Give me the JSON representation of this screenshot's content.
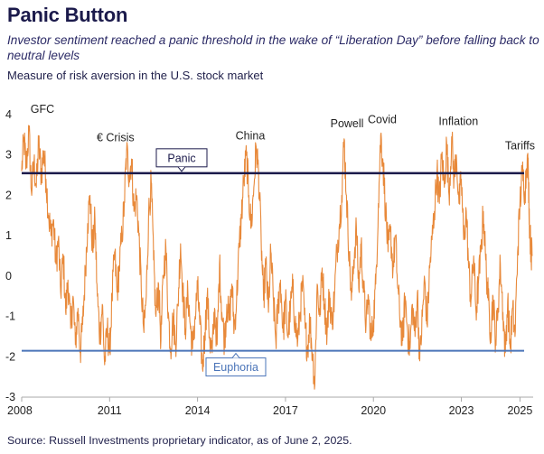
{
  "title": "Panic Button",
  "subtitle": "Investor sentiment reached a panic threshold in the wake of “Liberation Day” before falling back to neutral levels",
  "measure_label": "Measure of risk aversion in the U.S. stock market",
  "source": "Source: Russell Investments proprietary indicator, as of June 2, 2025.",
  "colors": {
    "series": "#e8893a",
    "panic_line": "#1b1a4b",
    "euphoria_line": "#4a74b8",
    "axis": "#999999"
  },
  "chart_data": {
    "type": "line",
    "title": "Panic Button",
    "xlabel": "",
    "ylabel": "",
    "xlim": [
      2008.0,
      2025.45
    ],
    "ylim": [
      -3,
      4
    ],
    "x_ticks": [
      2008,
      2011,
      2014,
      2017,
      2020,
      2023,
      2025
    ],
    "y_ticks": [
      4,
      3,
      2,
      1,
      0,
      -1,
      -2,
      -3
    ],
    "grid": false,
    "thresholds": [
      {
        "label": "Panic",
        "value": 2.55
      },
      {
        "label": "Euphoria",
        "value": -1.85
      }
    ],
    "annotations": [
      {
        "text": "GFC",
        "x": 2008.3,
        "y": 3.95
      },
      {
        "text": "€ Crisis",
        "x": 2011.2,
        "y": 3.25
      },
      {
        "text": "China",
        "x": 2015.8,
        "y": 3.3
      },
      {
        "text": "Powell",
        "x": 2019.1,
        "y": 3.6
      },
      {
        "text": "Covid",
        "x": 2020.3,
        "y": 3.7
      },
      {
        "text": "Inflation",
        "x": 2022.9,
        "y": 3.65
      },
      {
        "text": "Tariffs",
        "x": 2025.0,
        "y": 3.05
      }
    ],
    "series": [
      {
        "values": [
          [
            2008.0,
            2.6
          ],
          [
            2008.08,
            3.4
          ],
          [
            2008.15,
            2.7
          ],
          [
            2008.25,
            3.6
          ],
          [
            2008.33,
            2.1
          ],
          [
            2008.42,
            2.8
          ],
          [
            2008.5,
            2.2
          ],
          [
            2008.58,
            3.3
          ],
          [
            2008.67,
            2.5
          ],
          [
            2008.75,
            3.1
          ],
          [
            2008.83,
            2.4
          ],
          [
            2008.92,
            1.5
          ],
          [
            2009.0,
            1.0
          ],
          [
            2009.08,
            1.4
          ],
          [
            2009.17,
            0.3
          ],
          [
            2009.25,
            0.9
          ],
          [
            2009.33,
            -0.4
          ],
          [
            2009.42,
            0.5
          ],
          [
            2009.5,
            -0.9
          ],
          [
            2009.58,
            -0.1
          ],
          [
            2009.67,
            -1.3
          ],
          [
            2009.75,
            -0.5
          ],
          [
            2009.83,
            -1.7
          ],
          [
            2009.92,
            -0.8
          ],
          [
            2010.0,
            -1.9
          ],
          [
            2010.08,
            -1.2
          ],
          [
            2010.17,
            0.1
          ],
          [
            2010.25,
            1.3
          ],
          [
            2010.33,
            2.0
          ],
          [
            2010.42,
            0.6
          ],
          [
            2010.5,
            1.4
          ],
          [
            2010.58,
            -0.5
          ],
          [
            2010.67,
            -1.5
          ],
          [
            2010.75,
            -0.7
          ],
          [
            2010.83,
            -2.2
          ],
          [
            2010.92,
            -1.3
          ],
          [
            2011.0,
            -1.9
          ],
          [
            2011.08,
            -0.6
          ],
          [
            2011.17,
            0.6
          ],
          [
            2011.25,
            -0.4
          ],
          [
            2011.33,
            0.2
          ],
          [
            2011.42,
            1.0
          ],
          [
            2011.5,
            1.8
          ],
          [
            2011.58,
            3.1
          ],
          [
            2011.67,
            2.5
          ],
          [
            2011.75,
            2.9
          ],
          [
            2011.83,
            1.6
          ],
          [
            2011.92,
            2.0
          ],
          [
            2012.0,
            1.0
          ],
          [
            2012.08,
            -0.3
          ],
          [
            2012.17,
            -1.4
          ],
          [
            2012.25,
            -0.5
          ],
          [
            2012.33,
            1.5
          ],
          [
            2012.42,
            2.3
          ],
          [
            2012.5,
            0.4
          ],
          [
            2012.58,
            -1.0
          ],
          [
            2012.67,
            -0.2
          ],
          [
            2012.75,
            -1.6
          ],
          [
            2012.83,
            0.0
          ],
          [
            2012.92,
            0.7
          ],
          [
            2013.0,
            -0.9
          ],
          [
            2013.08,
            -1.8
          ],
          [
            2013.17,
            -1.0
          ],
          [
            2013.25,
            -1.7
          ],
          [
            2013.33,
            -0.7
          ],
          [
            2013.42,
            0.8
          ],
          [
            2013.5,
            -0.4
          ],
          [
            2013.58,
            -1.3
          ],
          [
            2013.67,
            -0.4
          ],
          [
            2013.75,
            -1.2
          ],
          [
            2013.83,
            -1.8
          ],
          [
            2013.92,
            -1.0
          ],
          [
            2014.0,
            -0.3
          ],
          [
            2014.08,
            -1.2
          ],
          [
            2014.17,
            -2.3
          ],
          [
            2014.25,
            -1.4
          ],
          [
            2014.33,
            -0.5
          ],
          [
            2014.42,
            -1.6
          ],
          [
            2014.5,
            -1.9
          ],
          [
            2014.58,
            -0.8
          ],
          [
            2014.67,
            -1.7
          ],
          [
            2014.75,
            0.3
          ],
          [
            2014.83,
            -0.9
          ],
          [
            2014.92,
            -1.6
          ],
          [
            2015.0,
            -0.7
          ],
          [
            2015.08,
            -1.1
          ],
          [
            2015.17,
            -0.2
          ],
          [
            2015.25,
            -1.3
          ],
          [
            2015.33,
            -0.6
          ],
          [
            2015.42,
            0.7
          ],
          [
            2015.5,
            1.5
          ],
          [
            2015.58,
            2.4
          ],
          [
            2015.67,
            3.0
          ],
          [
            2015.75,
            2.0
          ],
          [
            2015.83,
            1.2
          ],
          [
            2015.92,
            2.2
          ],
          [
            2016.0,
            3.2
          ],
          [
            2016.08,
            2.6
          ],
          [
            2016.17,
            0.9
          ],
          [
            2016.25,
            -0.6
          ],
          [
            2016.33,
            0.3
          ],
          [
            2016.42,
            -0.9
          ],
          [
            2016.5,
            0.6
          ],
          [
            2016.58,
            -0.5
          ],
          [
            2016.67,
            -1.6
          ],
          [
            2016.75,
            -0.7
          ],
          [
            2016.83,
            -0.1
          ],
          [
            2016.92,
            -1.4
          ],
          [
            2017.0,
            -0.6
          ],
          [
            2017.08,
            -1.5
          ],
          [
            2017.17,
            -0.8
          ],
          [
            2017.25,
            -0.3
          ],
          [
            2017.33,
            -1.2
          ],
          [
            2017.42,
            -1.6
          ],
          [
            2017.5,
            -0.9
          ],
          [
            2017.58,
            -0.2
          ],
          [
            2017.67,
            -1.3
          ],
          [
            2017.75,
            -1.8
          ],
          [
            2017.83,
            -1.1
          ],
          [
            2017.92,
            -1.9
          ],
          [
            2018.0,
            -2.7
          ],
          [
            2018.08,
            -0.2
          ],
          [
            2018.17,
            -1.0
          ],
          [
            2018.25,
            0.2
          ],
          [
            2018.33,
            -0.7
          ],
          [
            2018.42,
            -1.4
          ],
          [
            2018.5,
            -0.4
          ],
          [
            2018.58,
            -1.2
          ],
          [
            2018.67,
            -0.5
          ],
          [
            2018.75,
            0.6
          ],
          [
            2018.83,
            1.2
          ],
          [
            2018.92,
            2.0
          ],
          [
            2019.0,
            3.4
          ],
          [
            2019.08,
            2.0
          ],
          [
            2019.17,
            0.6
          ],
          [
            2019.25,
            -0.6
          ],
          [
            2019.33,
            0.4
          ],
          [
            2019.42,
            1.2
          ],
          [
            2019.5,
            -0.3
          ],
          [
            2019.58,
            0.8
          ],
          [
            2019.67,
            -0.4
          ],
          [
            2019.75,
            -1.2
          ],
          [
            2019.83,
            -0.5
          ],
          [
            2019.92,
            -1.6
          ],
          [
            2020.0,
            -1.1
          ],
          [
            2020.08,
            -0.2
          ],
          [
            2020.17,
            1.8
          ],
          [
            2020.25,
            3.5
          ],
          [
            2020.33,
            2.8
          ],
          [
            2020.42,
            1.6
          ],
          [
            2020.5,
            0.6
          ],
          [
            2020.58,
            1.1
          ],
          [
            2020.67,
            0.2
          ],
          [
            2020.75,
            1.0
          ],
          [
            2020.83,
            -0.3
          ],
          [
            2020.92,
            -1.1
          ],
          [
            2021.0,
            -1.6
          ],
          [
            2021.08,
            -0.5
          ],
          [
            2021.17,
            -1.4
          ],
          [
            2021.25,
            -1.8
          ],
          [
            2021.33,
            -0.7
          ],
          [
            2021.42,
            -1.5
          ],
          [
            2021.5,
            -0.4
          ],
          [
            2021.58,
            -2.1
          ],
          [
            2021.67,
            -1.0
          ],
          [
            2021.75,
            -0.1
          ],
          [
            2021.83,
            -1.2
          ],
          [
            2021.92,
            0.2
          ],
          [
            2022.0,
            0.9
          ],
          [
            2022.08,
            1.6
          ],
          [
            2022.17,
            2.6
          ],
          [
            2022.25,
            1.8
          ],
          [
            2022.33,
            3.0
          ],
          [
            2022.42,
            2.2
          ],
          [
            2022.5,
            3.3
          ],
          [
            2022.58,
            2.0
          ],
          [
            2022.67,
            3.45
          ],
          [
            2022.75,
            2.4
          ],
          [
            2022.83,
            3.0
          ],
          [
            2022.92,
            1.8
          ],
          [
            2023.0,
            2.4
          ],
          [
            2023.08,
            0.9
          ],
          [
            2023.17,
            1.6
          ],
          [
            2023.25,
            0.2
          ],
          [
            2023.33,
            -0.6
          ],
          [
            2023.42,
            0.5
          ],
          [
            2023.5,
            -0.9
          ],
          [
            2023.58,
            -0.2
          ],
          [
            2023.67,
            0.6
          ],
          [
            2023.75,
            1.6
          ],
          [
            2023.83,
            0.4
          ],
          [
            2023.92,
            -0.6
          ],
          [
            2024.0,
            -1.4
          ],
          [
            2024.08,
            -0.5
          ],
          [
            2024.17,
            -1.6
          ],
          [
            2024.25,
            -0.8
          ],
          [
            2024.33,
            0.3
          ],
          [
            2024.42,
            -0.9
          ],
          [
            2024.5,
            -1.9
          ],
          [
            2024.58,
            -0.6
          ],
          [
            2024.67,
            -1.8
          ],
          [
            2024.75,
            -0.8
          ],
          [
            2024.83,
            -1.5
          ],
          [
            2024.92,
            0.6
          ],
          [
            2025.0,
            1.8
          ],
          [
            2025.08,
            2.6
          ],
          [
            2025.17,
            2.1
          ],
          [
            2025.25,
            3.0
          ],
          [
            2025.29,
            2.4
          ],
          [
            2025.33,
            1.2
          ],
          [
            2025.38,
            0.6
          ],
          [
            2025.42,
            0.5
          ]
        ]
      }
    ]
  }
}
